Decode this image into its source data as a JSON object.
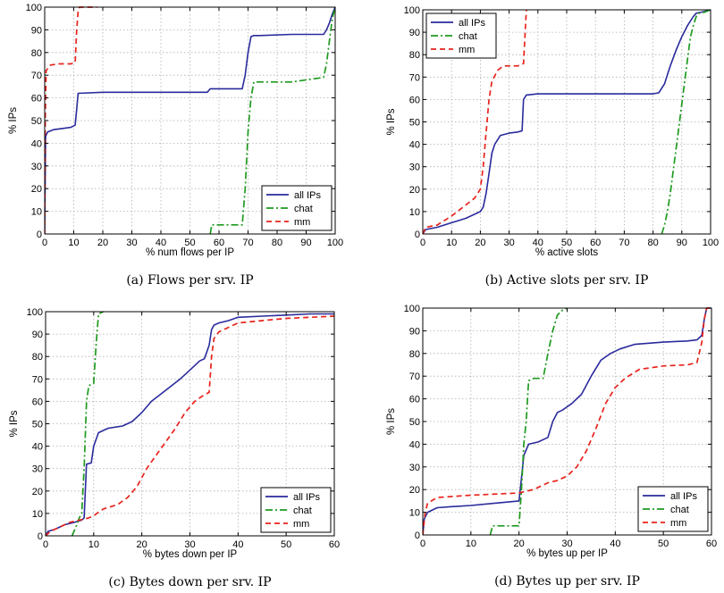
{
  "chart_data": [
    {
      "type": "line",
      "caption": "(a) Flows per srv. IP",
      "xlabel": "% num flows per IP",
      "ylabel": "% IPs",
      "xlim": [
        0,
        100
      ],
      "ylim": [
        0,
        100
      ],
      "xticks": [
        0,
        10,
        20,
        30,
        40,
        50,
        60,
        70,
        80,
        90,
        100
      ],
      "yticks": [
        0,
        10,
        20,
        30,
        40,
        50,
        60,
        70,
        80,
        90,
        100
      ],
      "grid": true,
      "legend_position": "bottom-right",
      "series": [
        {
          "name": "all IPs",
          "color": "#2a2a9c",
          "dash": "solid",
          "x": [
            0,
            0.3,
            1,
            3,
            6,
            9,
            10.5,
            11,
            11.5,
            20,
            40,
            56,
            57,
            68,
            69,
            70,
            71,
            72,
            74,
            85,
            96,
            97,
            98,
            99,
            100
          ],
          "y": [
            0,
            43,
            45,
            46,
            46.5,
            47,
            48,
            55,
            62,
            62.5,
            62.5,
            62.5,
            64,
            64,
            70,
            80,
            87,
            87.5,
            87.5,
            88,
            88,
            90,
            93,
            97,
            100
          ]
        },
        {
          "name": "chat",
          "color": "#1e9a1e",
          "dash": "dashdot",
          "x": [
            57,
            57.5,
            68,
            69,
            70,
            71,
            72,
            85,
            96,
            97,
            98,
            99,
            100
          ],
          "y": [
            0,
            4,
            4,
            20,
            45,
            60,
            67,
            67,
            69,
            75,
            85,
            95,
            100
          ]
        },
        {
          "name": "mm",
          "color": "#e8231c",
          "dash": "dashed",
          "x": [
            0,
            0.2,
            0.5,
            2,
            5,
            9,
            10.5,
            11,
            11.5,
            12,
            18
          ],
          "y": [
            0,
            50,
            72,
            74.5,
            75,
            75,
            75.5,
            90,
            98,
            100,
            100
          ]
        }
      ]
    },
    {
      "type": "line",
      "caption": "(b) Active slots per srv. IP",
      "xlabel": "% active slots",
      "ylabel": "% IPs",
      "xlim": [
        0,
        100
      ],
      "ylim": [
        0,
        100
      ],
      "xticks": [
        0,
        10,
        20,
        30,
        40,
        50,
        60,
        70,
        80,
        90,
        100
      ],
      "yticks": [
        0,
        10,
        20,
        30,
        40,
        50,
        60,
        70,
        80,
        90,
        100
      ],
      "grid": true,
      "legend_position": "top-left",
      "series": [
        {
          "name": "all IPs",
          "color": "#2a2a9c",
          "dash": "solid",
          "x": [
            0,
            1,
            5,
            10,
            15,
            20,
            21,
            22,
            23,
            24,
            25,
            27,
            30,
            33,
            34.5,
            35,
            36,
            40,
            60,
            80,
            82,
            84,
            86,
            88,
            90,
            92,
            94,
            95,
            97,
            100
          ],
          "y": [
            0,
            2,
            3,
            5,
            7,
            10,
            12,
            18,
            27,
            36,
            40,
            44,
            45,
            45.5,
            46,
            60,
            62,
            62.5,
            62.5,
            62.5,
            63,
            67,
            75,
            82,
            88,
            93,
            97,
            98.5,
            99,
            100
          ]
        },
        {
          "name": "chat",
          "color": "#1e9a1e",
          "dash": "dashdot",
          "x": [
            83,
            84,
            85,
            86,
            87,
            88,
            89,
            90,
            91,
            92,
            93,
            94,
            95,
            96,
            98,
            100
          ],
          "y": [
            0,
            4,
            10,
            18,
            28,
            38,
            48,
            58,
            68,
            78,
            88,
            93,
            97,
            98.5,
            99,
            100
          ]
        },
        {
          "name": "mm",
          "color": "#e8231c",
          "dash": "dashed",
          "x": [
            0,
            1,
            5,
            10,
            14,
            18,
            20,
            21,
            22,
            23,
            24,
            26,
            28,
            33,
            35,
            35.5,
            36
          ],
          "y": [
            0,
            3,
            4,
            8,
            12,
            16,
            20,
            30,
            45,
            60,
            68,
            73,
            75,
            75,
            76,
            88,
            100
          ]
        }
      ]
    },
    {
      "type": "line",
      "caption": "(c) Bytes down per srv. IP",
      "xlabel": "% bytes down per IP",
      "ylabel": "% IPs",
      "xlim": [
        0,
        60
      ],
      "ylim": [
        0,
        100
      ],
      "xticks": [
        0,
        10,
        20,
        30,
        40,
        50,
        60
      ],
      "yticks": [
        0,
        10,
        20,
        30,
        40,
        50,
        60,
        70,
        80,
        90,
        100
      ],
      "grid": true,
      "legend_position": "bottom-right",
      "series": [
        {
          "name": "all IPs",
          "color": "#2a2a9c",
          "dash": "solid",
          "x": [
            0,
            0.5,
            2,
            4,
            6,
            7.5,
            8,
            8.5,
            9.5,
            10,
            11,
            13,
            16,
            18,
            20,
            22,
            25,
            28,
            30,
            32,
            33,
            34,
            34.5,
            35,
            36,
            38,
            40,
            45,
            50,
            55,
            60
          ],
          "y": [
            0,
            2,
            3,
            5,
            6,
            7,
            8,
            32,
            32.5,
            40,
            46,
            48,
            49,
            51,
            55,
            60,
            65,
            70,
            74,
            78,
            79,
            85,
            92,
            94,
            95,
            96,
            97.5,
            98,
            98.5,
            99,
            99
          ]
        },
        {
          "name": "chat",
          "color": "#1e9a1e",
          "dash": "dashdot",
          "x": [
            5.5,
            6.5,
            7,
            7.5,
            8,
            8.5,
            9,
            10,
            10.5,
            11,
            12
          ],
          "y": [
            0,
            5,
            8,
            10,
            30,
            60,
            67,
            68,
            85,
            99,
            100
          ]
        },
        {
          "name": "mm",
          "color": "#e8231c",
          "dash": "dashed",
          "x": [
            0,
            1,
            3,
            5,
            7,
            9,
            10,
            12,
            15,
            17,
            19,
            21,
            23,
            25,
            27,
            29,
            31,
            33,
            34,
            34.5,
            35,
            36,
            38,
            40,
            45,
            50,
            55,
            60
          ],
          "y": [
            0,
            2,
            4,
            6,
            7,
            8,
            9,
            12,
            14,
            17,
            22,
            30,
            36,
            42,
            48,
            55,
            60,
            63,
            64,
            80,
            88,
            91,
            93,
            95,
            96,
            97,
            97.5,
            98
          ]
        }
      ]
    },
    {
      "type": "line",
      "caption": "(d) Bytes up per srv. IP",
      "xlabel": "% bytes up per IP",
      "ylabel": "% IPs",
      "xlim": [
        0,
        60
      ],
      "ylim": [
        0,
        100
      ],
      "xticks": [
        0,
        10,
        20,
        30,
        40,
        50,
        60
      ],
      "yticks": [
        0,
        10,
        20,
        30,
        40,
        50,
        60,
        70,
        80,
        90,
        100
      ],
      "grid": true,
      "legend_position": "bottom-right",
      "series": [
        {
          "name": "all IPs",
          "color": "#2a2a9c",
          "dash": "solid",
          "x": [
            0,
            0.3,
            1,
            3,
            6,
            10,
            15,
            20,
            20.5,
            21,
            22,
            24,
            25,
            26,
            27,
            28,
            29,
            31,
            33,
            35,
            37,
            39,
            41,
            44,
            50,
            55,
            57,
            58,
            58.5,
            59,
            60
          ],
          "y": [
            0,
            7,
            10,
            12,
            12.5,
            13,
            14,
            15,
            25,
            35,
            40,
            41,
            42,
            43,
            50,
            54,
            55,
            58,
            62,
            70,
            77,
            80,
            82,
            84,
            85,
            85.5,
            86,
            88,
            95,
            100,
            100
          ]
        },
        {
          "name": "chat",
          "color": "#1e9a1e",
          "dash": "dashdot",
          "x": [
            14,
            14.5,
            20,
            20.5,
            21,
            21.5,
            22,
            23,
            25,
            26,
            27,
            28,
            29,
            30
          ],
          "y": [
            0,
            4,
            4,
            20,
            40,
            50,
            68,
            69,
            69,
            80,
            90,
            97,
            99,
            100
          ]
        },
        {
          "name": "mm",
          "color": "#e8231c",
          "dash": "dashed",
          "x": [
            0,
            0.5,
            1,
            3,
            10,
            20,
            21,
            23,
            26,
            28,
            30,
            32,
            34,
            36,
            38,
            40,
            42,
            45,
            50,
            55,
            57,
            58,
            58.5,
            59,
            60
          ],
          "y": [
            0,
            10,
            14,
            16.5,
            17.5,
            18.5,
            19,
            20,
            23,
            24,
            26,
            30,
            37,
            47,
            58,
            65,
            69,
            73,
            74.5,
            75,
            76,
            85,
            95,
            100,
            100
          ]
        }
      ]
    }
  ]
}
